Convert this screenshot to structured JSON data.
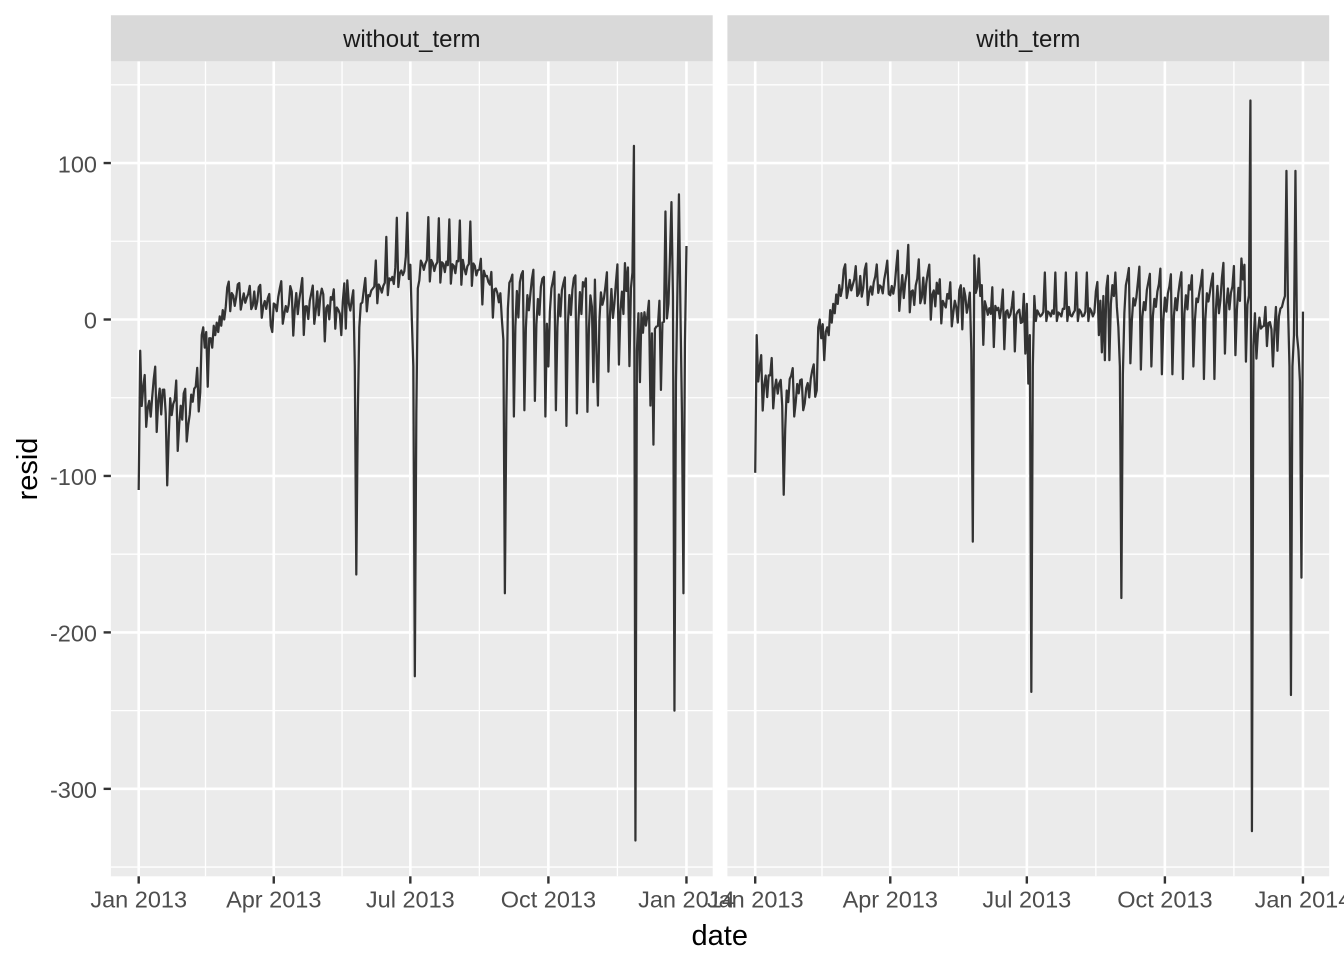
{
  "figure": {
    "x_axis_title": "date",
    "y_axis_title": "resid"
  },
  "chart_data": {
    "type": "line",
    "xlabel": "date",
    "ylabel": "resid",
    "x_start_date": "2013-01-01",
    "x_unit": "day-offset from 2013-01-01",
    "x_tick_labels": [
      "Jan 2013",
      "Apr 2013",
      "Jul 2013",
      "Oct 2013",
      "Jan 2014"
    ],
    "x_tick_days": [
      0,
      90,
      181,
      273,
      365
    ],
    "x_minor_tick_days": [
      44.5,
      135.5,
      227,
      319
    ],
    "y_tick_labels": [
      "100",
      "0",
      "-100",
      "-200",
      "-300"
    ],
    "y_tick_values": [
      100,
      0,
      -100,
      -200,
      -300
    ],
    "y_minor_tick_values": [
      150,
      50,
      -50,
      -150,
      -250,
      -350
    ],
    "ylim": [
      -351.5,
      165.5
    ],
    "grid": true,
    "legend": null,
    "facets": [
      {
        "label": "without_term",
        "values": [
          -109,
          -20,
          -55.3,
          -43.3,
          -35.5,
          -68.6,
          -56.5,
          -52.0,
          -62.1,
          -49.5,
          -38.3,
          -30.1,
          -71.9,
          -52.1,
          -44.2,
          -60.7,
          -44.9,
          -44.8,
          -60,
          -106,
          -75,
          -50.3,
          -61.1,
          -54.0,
          -51.4,
          -39.0,
          -84,
          -67.0,
          -55.1,
          -64.0,
          -47.2,
          -44.3,
          -78,
          -67.6,
          -60.8,
          -48.0,
          -52.6,
          -44.2,
          -42.9,
          -30.9,
          -58.8,
          -46.5,
          -10,
          -5,
          -18,
          -8,
          -43,
          -12,
          -12,
          -18,
          -4,
          -10,
          -2,
          -8,
          2,
          -4,
          6,
          0,
          8,
          20.4,
          24.2,
          5.3,
          16.9,
          15.3,
          8.7,
          14.4,
          22.4,
          23.3,
          6.3,
          11.6,
          16.7,
          10.7,
          13.8,
          16.4,
          21.5,
          6.6,
          8.8,
          17.9,
          6.7,
          11.4,
          20.7,
          22.1,
          1.1,
          8.4,
          11.8,
          6.8,
          13.5,
          16.3,
          -4,
          -8,
          10.2,
          9.4,
          5.3,
          14.4,
          19.8,
          24.5,
          -2.7,
          3.5,
          8.6,
          4.9,
          9.6,
          21.3,
          17.8,
          -10.3,
          7.0,
          16.9,
          3.4,
          12.7,
          19.2,
          26.5,
          -9.9,
          8.4,
          8.5,
          0.3,
          12.0,
          16.6,
          21.7,
          -2.8,
          6.0,
          18.0,
          2.7,
          14.6,
          19.7,
          16.1,
          -14.0,
          7.3,
          9.1,
          0.1,
          14.3,
          12.7,
          19.3,
          -5.9,
          7.7,
          6.2,
          3.7,
          -10,
          11.4,
          23.1,
          -5.8,
          25,
          10.4,
          5.7,
          12.7,
          18.7,
          -30,
          -163,
          -60,
          -5,
          10,
          10.9,
          19.0,
          26.5,
          5.2,
          15.6,
          14.9,
          18.6,
          19.8,
          21.1,
          37.7,
          10.4,
          22.4,
          20.3,
          17.2,
          21.5,
          23.5,
          52.8,
          15.6,
          26.3,
          25.1,
          27.2,
          22.7,
          33.1,
          65.0,
          20.8,
          29.5,
          31.3,
          28.4,
          30.8,
          40.2,
          68.2,
          25.9,
          35,
          0,
          -30,
          -228,
          -60,
          20,
          25.0,
          37.6,
          35.6,
          31.7,
          35.7,
          37.9,
          65.4,
          24.3,
          38.0,
          35.9,
          31.0,
          34.9,
          36.6,
          64.7,
          23.6,
          36.6,
          35.6,
          30.3,
          37.0,
          34.7,
          64.0,
          22.9,
          35.3,
          34.3,
          29.6,
          37.4,
          37.2,
          63.3,
          22.2,
          38.1,
          32.7,
          28.9,
          34.0,
          35.5,
          62.6,
          21.5,
          35.8,
          34.2,
          28.2,
          31.5,
          32.0,
          38.8,
          9.6,
          31.2,
          27.7,
          27.9,
          24.0,
          22.3,
          30.4,
          1.2,
          19.3,
          19.8,
          16.8,
          11,
          16.8,
          0,
          -13,
          -175,
          -57,
          7.0,
          23.5,
          25.3,
          28.7,
          -62,
          -4.4,
          18.2,
          1.3,
          23.9,
          28.7,
          30.9,
          -58,
          -5.5,
          15.6,
          5.9,
          16.2,
          25.8,
          31.8,
          -52,
          -3.1,
          13.1,
          3.0,
          20.9,
          26.1,
          27.2,
          -62,
          -2.7,
          -30,
          5.1,
          19.9,
          24.6,
          30.5,
          -58,
          -5.0,
          16.0,
          2.0,
          18.8,
          23.2,
          26.9,
          -68,
          -2.7,
          15.7,
          2.9,
          19.0,
          26.5,
          28.2,
          -60,
          -1.2,
          17.5,
          3.5,
          23.9,
          21.2,
          26.3,
          -59,
          -5.7,
          15.4,
          8.1,
          -40,
          25.5,
          -20,
          -55,
          -0.6,
          17.3,
          9.4,
          13.5,
          21.2,
          30.2,
          -33.3,
          2.3,
          19.5,
          1.0,
          10.4,
          23.7,
          35.2,
          -28.8,
          5.3,
          17.8,
          3.5,
          36,
          18.2,
          33.2,
          -29.8,
          20,
          30,
          111,
          -333,
          -20,
          4,
          -40,
          4.1,
          -8.5,
          4.6,
          -3.9,
          2.7,
          12,
          -55,
          -8.9,
          -80,
          -5.9,
          -4.5,
          -4.0,
          12,
          -45,
          -1.9,
          -1.4,
          69,
          0.7,
          10,
          40,
          75,
          15,
          -250,
          -40,
          20,
          80,
          5,
          -60,
          -175,
          -15,
          47
        ]
      },
      {
        "label": "with_term",
        "values": [
          -98,
          -10,
          -39.6,
          -30.3,
          -22.8,
          -58.2,
          -42.0,
          -35.8,
          -49.6,
          -35.7,
          -35.7,
          -24.6,
          -56.8,
          -44.4,
          -38.4,
          -47.4,
          -40.8,
          -38.6,
          -55,
          -112,
          -70,
          -45.4,
          -52.8,
          -38.1,
          -35.8,
          -31.1,
          -62,
          -53.0,
          -41.2,
          -47.2,
          -38.8,
          -38.3,
          -58,
          -53.6,
          -43.8,
          -40.6,
          -49.8,
          -38.0,
          -32.5,
          -28.7,
          -49.4,
          -45.3,
          -5,
          0,
          -12,
          -3,
          -26,
          -8,
          -5,
          -10,
          6,
          -2,
          10,
          4,
          16,
          10,
          22,
          15,
          20,
          32.0,
          35.3,
          13.7,
          19.0,
          25.3,
          18.6,
          22.1,
          25.6,
          34.1,
          15.0,
          16.5,
          27.8,
          14.6,
          20.1,
          31.9,
          35.8,
          9.3,
          17.1,
          21.1,
          15.9,
          23.8,
          27.5,
          35.2,
          17.0,
          21.8,
          20.9,
          16.7,
          25.7,
          31.0,
          37.6,
          16.3,
          15.5,
          21.4,
          16.5,
          22.1,
          33.6,
          44.0,
          5.5,
          17.6,
          28.4,
          13.7,
          23.8,
          30.1,
          47.7,
          4.6,
          17.8,
          18.6,
          9.3,
          21.8,
          26.1,
          38.4,
          10.4,
          14.0,
          26.8,
          10.3,
          23.1,
          30.0,
          35.1,
          -0.1,
          16.0,
          18.6,
          8.4,
          23.5,
          16.5,
          25.7,
          -2.5,
          11.9,
          9.7,
          7.7,
          16.3,
          13.4,
          23.8,
          -4.4,
          4.3,
          12.0,
          7.9,
          -2,
          18.7,
          21.9,
          -6.3,
          20,
          15.0,
          4.3,
          9.2,
          17.2,
          -20,
          -142,
          41,
          17,
          21,
          39,
          15,
          22.0,
          -16.2,
          11.7,
          7.9,
          3.0,
          7.2,
          3.6,
          20.6,
          -17.6,
          8.7,
          6.0,
          7.5,
          0.8,
          7.6,
          19.2,
          -19.0,
          4.8,
          5.9,
          1.2,
          3.1,
          8.7,
          17.8,
          -20.4,
          3.1,
          5.2,
          6.3,
          -2.2,
          -1.6,
          16.4,
          -21.8,
          10,
          -41,
          -10,
          -238,
          -30,
          15,
          -1,
          5.8,
          3.8,
          2,
          3.0,
          4.8,
          30,
          -1,
          5.1,
          4.2,
          2,
          5.8,
          3.6,
          30,
          -1,
          4.5,
          3.6,
          2,
          6.9,
          6.8,
          30,
          -1,
          8.0,
          2.7,
          2,
          4.2,
          5.8,
          30,
          -1,
          6.4,
          4.9,
          2,
          2.4,
          5.0,
          30,
          -1,
          7.1,
          5.4,
          2,
          4.4,
          18,
          24,
          -10,
          12,
          -21,
          15,
          -26,
          20,
          28,
          -26,
          10,
          22,
          15,
          30,
          8,
          -5,
          -30,
          -178,
          -35,
          4.3,
          21.9,
          26.7,
          32.9,
          -28,
          -0.5,
          13.6,
          8.9,
          14.2,
          23.8,
          33.8,
          -32,
          1.9,
          11.1,
          6.0,
          18.9,
          24.1,
          29.2,
          -30,
          2.3,
          13.2,
          8.1,
          17.9,
          22.6,
          32.5,
          -35,
          0.0,
          14.0,
          5.0,
          16.8,
          21.2,
          28.9,
          -35,
          2.3,
          13.7,
          5.9,
          17.0,
          24.5,
          30.2,
          -38,
          3.8,
          15.5,
          6.5,
          21.9,
          19.2,
          28.3,
          -30,
          -0.7,
          13.4,
          11.1,
          17.7,
          23.5,
          31.7,
          -38,
          0.7,
          16.8,
          11.5,
          17.6,
          24.0,
          29.4,
          -38,
          6.3,
          21.5,
          4.0,
          12.4,
          26.7,
          36.2,
          -21.8,
          9.3,
          19.8,
          6.5,
          17.0,
          21.2,
          34.2,
          -22.8,
          6.5,
          20.2,
          11.9,
          39,
          25.6,
          35,
          -26.9,
          9.5,
          15.3,
          140,
          -327,
          -17,
          4,
          -25,
          -8.6,
          1.2,
          -5.8,
          -4.5,
          -4.1,
          8,
          -17,
          -2.2,
          -1.7,
          -6.2,
          -30,
          -7.2,
          8,
          -20,
          2.0,
          7,
          8,
          12,
          15,
          95,
          10,
          -30,
          -240,
          -30,
          -10,
          95,
          -10,
          -20,
          -40,
          -165,
          5
        ]
      }
    ],
    "colors": {
      "background": "#FFFFFF",
      "panel_bg": "#EBEBEB",
      "strip_bg": "#D9D9D9",
      "grid": "#FFFFFF",
      "line": "#333333",
      "axis_text": "#4D4D4D",
      "axis_title": "#000000",
      "strip_text": "#1A1A1A",
      "tick_mark": "#333333"
    }
  }
}
